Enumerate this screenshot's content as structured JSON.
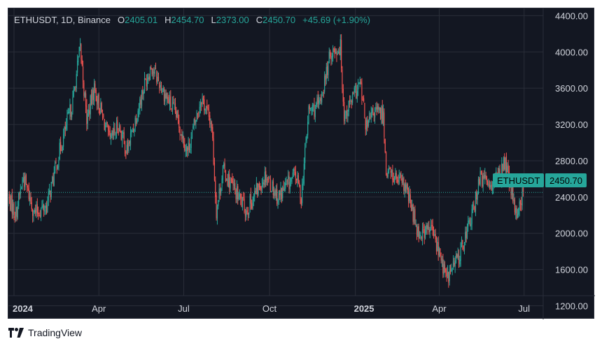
{
  "legend": {
    "symbol": "ETHUSDT, 1D, Binance",
    "open_label": "O",
    "open": "2405.01",
    "high_label": "H",
    "high": "2454.70",
    "low_label": "L",
    "low": "2373.00",
    "close_label": "C",
    "close": "2450.70",
    "change": "+45.69 (+1.90%)"
  },
  "price_tag": {
    "ticker": "ETHUSDT",
    "price": "2450.70"
  },
  "footer": {
    "brand": "TradingView"
  },
  "colors": {
    "background": "#131722",
    "up": "#26a69a",
    "down": "#ef5350",
    "grid": "#2a2e39",
    "text": "#d1d4dc"
  },
  "chart_data": {
    "type": "candlestick",
    "symbol": "ETHUSDT",
    "interval": "1D",
    "exchange": "Binance",
    "x_range": [
      "2023-12-26",
      "2025-09-15"
    ],
    "ylim": [
      1050,
      4480
    ],
    "grid": true,
    "y_ticks": [
      "4400.00",
      "4000.00",
      "3600.00",
      "3200.00",
      "2800.00",
      "2400.00",
      "2000.00",
      "1600.00",
      "1200.00"
    ],
    "y_tick_values": [
      4400,
      4000,
      3600,
      3200,
      2800,
      2400,
      2000,
      1600,
      1200
    ],
    "x_ticks": [
      {
        "label": "2024",
        "date": "2024-01-01",
        "year": true
      },
      {
        "label": "Apr",
        "date": "2024-04-01",
        "year": false
      },
      {
        "label": "Jul",
        "date": "2024-07-01",
        "year": false
      },
      {
        "label": "Oct",
        "date": "2024-10-01",
        "year": false
      },
      {
        "label": "2025",
        "date": "2025-01-01",
        "year": true
      },
      {
        "label": "Apr",
        "date": "2025-04-01",
        "year": false
      },
      {
        "label": "Jul",
        "date": "2025-07-01",
        "year": false
      }
    ],
    "last_price": 2450.7,
    "start_date": "2023-12-26",
    "close_anchors": [
      [
        "2023-12-26",
        2380
      ],
      [
        "2024-01-03",
        2220
      ],
      [
        "2024-01-11",
        2620
      ],
      [
        "2024-01-23",
        2220
      ],
      [
        "2024-02-05",
        2300
      ],
      [
        "2024-02-20",
        2950
      ],
      [
        "2024-03-04",
        3450
      ],
      [
        "2024-03-12",
        4050
      ],
      [
        "2024-03-19",
        3250
      ],
      [
        "2024-03-27",
        3600
      ],
      [
        "2024-04-13",
        3000
      ],
      [
        "2024-04-22",
        3200
      ],
      [
        "2024-05-01",
        2900
      ],
      [
        "2024-05-20",
        3650
      ],
      [
        "2024-05-27",
        3850
      ],
      [
        "2024-06-10",
        3550
      ],
      [
        "2024-06-23",
        3300
      ],
      [
        "2024-07-05",
        2900
      ],
      [
        "2024-07-20",
        3500
      ],
      [
        "2024-07-31",
        3200
      ],
      [
        "2024-08-05",
        2250
      ],
      [
        "2024-08-12",
        2700
      ],
      [
        "2024-09-06",
        2250
      ],
      [
        "2024-09-27",
        2650
      ],
      [
        "2024-10-10",
        2400
      ],
      [
        "2024-10-29",
        2650
      ],
      [
        "2024-11-04",
        2400
      ],
      [
        "2024-11-12",
        3350
      ],
      [
        "2024-11-23",
        3400
      ],
      [
        "2024-12-06",
        4000
      ],
      [
        "2024-12-16",
        4050
      ],
      [
        "2024-12-20",
        3300
      ],
      [
        "2025-01-06",
        3650
      ],
      [
        "2025-01-13",
        3150
      ],
      [
        "2025-01-21",
        3350
      ],
      [
        "2025-01-31",
        3300
      ],
      [
        "2025-02-03",
        2700
      ],
      [
        "2025-02-24",
        2500
      ],
      [
        "2025-03-10",
        2000
      ],
      [
        "2025-03-24",
        2050
      ],
      [
        "2025-04-09",
        1500
      ],
      [
        "2025-04-22",
        1750
      ],
      [
        "2025-05-09",
        2300
      ],
      [
        "2025-05-13",
        2600
      ],
      [
        "2025-05-30",
        2550
      ],
      [
        "2025-06-11",
        2780
      ],
      [
        "2025-06-22",
        2200
      ],
      [
        "2025-06-30",
        2450.7
      ]
    ]
  }
}
